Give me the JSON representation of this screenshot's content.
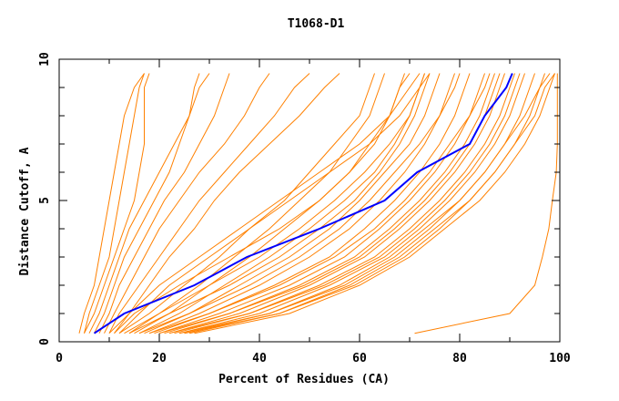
{
  "chart_data": {
    "type": "line",
    "title": "T1068-D1",
    "xlabel": "Percent of Residues (CA)",
    "ylabel": "Distance Cutoff, A",
    "xlim": [
      0,
      100
    ],
    "ylim": [
      0,
      10
    ],
    "x_ticks": [
      "0",
      "20",
      "40",
      "60",
      "80",
      "100"
    ],
    "y_ticks": [
      "0",
      "5",
      "10"
    ],
    "grid": false,
    "legend": "none",
    "colors": {
      "models": "#ff8000",
      "highlight": "#0000ff",
      "axes": "#000000"
    },
    "y_levels": [
      0.3,
      1,
      2,
      3,
      4,
      5,
      6,
      7,
      8,
      9,
      9.5
    ],
    "highlight_series": {
      "x": [
        7,
        13,
        27,
        37.5,
        52,
        65,
        71.5,
        82,
        85,
        89.3,
        90.5
      ]
    },
    "series": [
      {
        "x": [
          4,
          5,
          7,
          8,
          9,
          10,
          11,
          12,
          13,
          15,
          17
        ]
      },
      {
        "x": [
          5,
          6,
          8,
          10,
          11,
          12,
          13,
          14,
          15,
          16,
          17
        ]
      },
      {
        "x": [
          5,
          7,
          9,
          11,
          13,
          15,
          16,
          17,
          17,
          17,
          18
        ]
      },
      {
        "x": [
          6,
          8,
          10,
          12,
          14,
          17,
          20,
          23,
          26,
          28,
          30
        ]
      },
      {
        "x": [
          7,
          9,
          11,
          13,
          16,
          19,
          22,
          24,
          26,
          27,
          28
        ]
      },
      {
        "x": [
          8,
          10,
          12,
          15,
          18,
          21,
          25,
          28,
          31,
          33,
          34
        ]
      },
      {
        "x": [
          9,
          11,
          14,
          17,
          20,
          24,
          28,
          33,
          37,
          40,
          42
        ]
      },
      {
        "x": [
          10,
          12,
          16,
          20,
          24,
          28,
          33,
          38,
          43,
          47,
          50
        ]
      },
      {
        "x": [
          11,
          14,
          18,
          22,
          27,
          31,
          36,
          42,
          48,
          53,
          56
        ]
      },
      {
        "x": [
          12,
          18,
          25,
          32,
          38,
          45,
          50,
          55,
          60,
          62,
          63
        ]
      },
      {
        "x": [
          14,
          20,
          28,
          35,
          42,
          48,
          54,
          58,
          62,
          64,
          65
        ]
      },
      {
        "x": [
          15,
          22,
          30,
          38,
          45,
          52,
          58,
          63,
          66,
          68,
          69
        ]
      },
      {
        "x": [
          16,
          24,
          33,
          42,
          50,
          57,
          63,
          67,
          70,
          72,
          73
        ]
      },
      {
        "x": [
          17,
          26,
          36,
          46,
          54,
          60,
          65,
          70,
          73,
          75,
          76
        ]
      },
      {
        "x": [
          18,
          28,
          40,
          50,
          58,
          64,
          69,
          73,
          76,
          78,
          79
        ]
      },
      {
        "x": [
          19,
          30,
          43,
          54,
          61,
          67,
          72,
          76,
          79,
          81,
          82
        ]
      },
      {
        "x": [
          20,
          32,
          46,
          57,
          64,
          70,
          75,
          79,
          82,
          84,
          85
        ]
      },
      {
        "x": [
          21,
          34,
          48,
          59,
          66,
          72,
          77,
          81,
          84,
          86,
          87
        ]
      },
      {
        "x": [
          22,
          36,
          50,
          61,
          68,
          74,
          79,
          83,
          86,
          88,
          89
        ]
      },
      {
        "x": [
          23,
          38,
          52,
          63,
          70,
          76,
          81,
          85,
          88,
          90,
          91
        ]
      },
      {
        "x": [
          24,
          40,
          54,
          65,
          72,
          78,
          83,
          87,
          90,
          92,
          93
        ]
      },
      {
        "x": [
          25,
          42,
          56,
          66,
          73,
          80,
          85,
          89,
          92,
          94,
          95
        ]
      },
      {
        "x": [
          26,
          44,
          58,
          68,
          75,
          82,
          87,
          91,
          94,
          96,
          97
        ]
      },
      {
        "x": [
          27,
          46,
          60,
          70,
          77,
          84,
          89,
          93,
          96,
          98,
          99
        ]
      },
      {
        "x": [
          14,
          22,
          34,
          44,
          52,
          59,
          64,
          68,
          71,
          73,
          74
        ]
      },
      {
        "x": [
          13,
          20,
          30,
          40,
          48,
          55,
          61,
          66,
          70,
          72,
          73
        ]
      },
      {
        "x": [
          16,
          26,
          38,
          48,
          56,
          62,
          67,
          72,
          76,
          79,
          80
        ]
      },
      {
        "x": [
          18,
          30,
          44,
          55,
          63,
          69,
          74,
          78,
          82,
          85,
          86
        ]
      },
      {
        "x": [
          20,
          34,
          49,
          60,
          67,
          73,
          78,
          82,
          85,
          87,
          88
        ]
      },
      {
        "x": [
          22,
          38,
          53,
          64,
          71,
          77,
          82,
          86,
          89,
          91,
          92
        ]
      },
      {
        "x": [
          12,
          16,
          22,
          30,
          38,
          46,
          54,
          62,
          68,
          72,
          74
        ]
      },
      {
        "x": [
          10,
          14,
          20,
          28,
          36,
          44,
          52,
          60,
          66,
          70,
          72
        ]
      },
      {
        "x": [
          11,
          15,
          24,
          34,
          44,
          52,
          58,
          62,
          66,
          68,
          70
        ]
      },
      {
        "x": [
          24,
          42,
          57,
          67,
          74,
          80,
          85,
          89,
          93,
          96,
          98
        ]
      },
      {
        "x": [
          25,
          44,
          59,
          69,
          76,
          82,
          87,
          91,
          95,
          97,
          99
        ]
      },
      {
        "x": [
          71,
          90,
          95,
          96.5,
          97.8,
          98.5,
          99.3,
          99.5,
          99.5,
          99.5,
          99.5
        ]
      }
    ]
  }
}
